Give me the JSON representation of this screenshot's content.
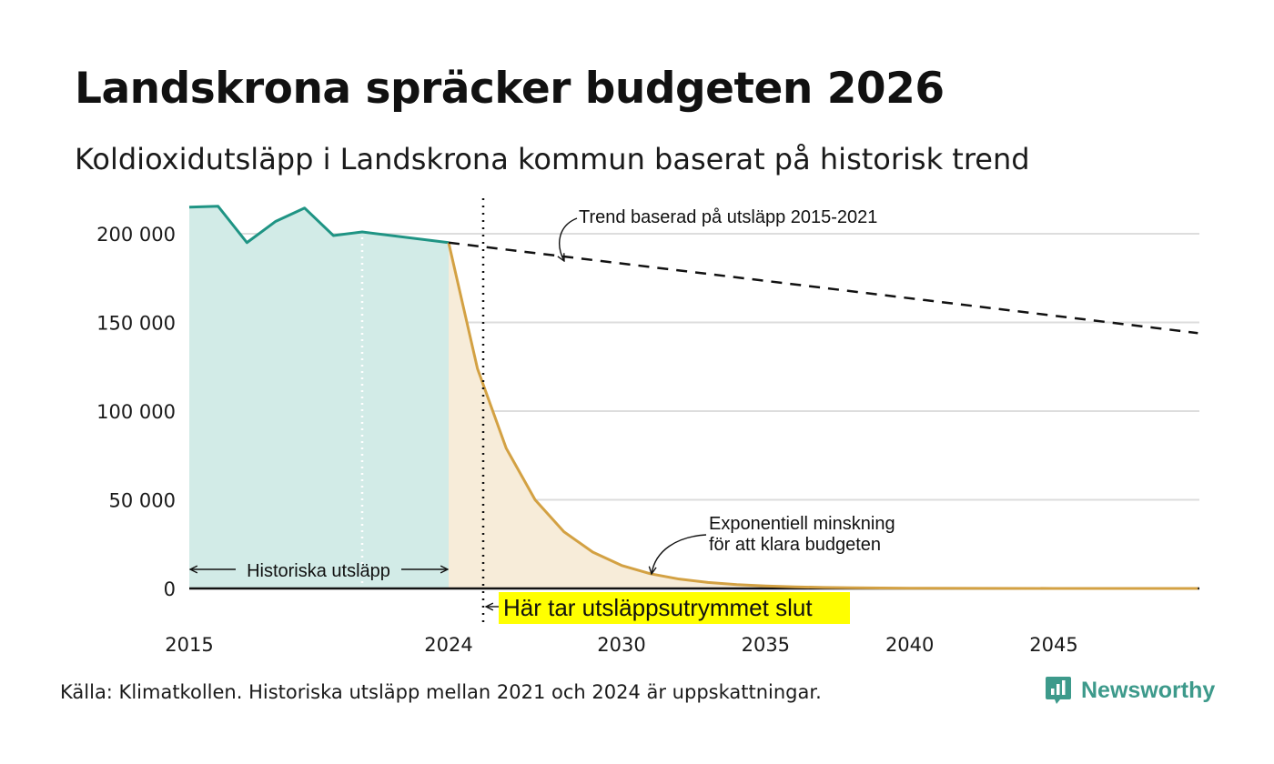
{
  "title": "Landskrona spräcker budgeten 2026",
  "subtitle": "Koldioxidutsläpp i Landskrona kommun baserat på historisk trend",
  "source": "Källa: Klimatkollen. Historiska utsläpp mellan 2021 och 2024 är uppskattningar.",
  "brand": {
    "name": "Newsworthy",
    "icon": "newsworthy-logo-icon",
    "color": "#3d9a8b"
  },
  "chart_data": {
    "type": "area",
    "title": "Landskrona spräcker budgeten 2026",
    "xlabel": "",
    "ylabel": "",
    "xlim": [
      2015,
      2050
    ],
    "ylim": [
      0,
      220000
    ],
    "x_ticks": [
      2015,
      2024,
      2030,
      2035,
      2040,
      2045
    ],
    "x_tick_labels": [
      "2015",
      "2024",
      "2030",
      "2035",
      "2040",
      "2045"
    ],
    "y_ticks": [
      0,
      50000,
      100000,
      150000,
      200000
    ],
    "y_tick_labels": [
      "0",
      "50 000",
      "100 000",
      "150 000",
      "200 000"
    ],
    "grid": true,
    "colors": {
      "historical_line": "#1f9484",
      "historical_fill": "#d2ebe7",
      "budget_line": "#d3a143",
      "budget_fill": "#f7ecd9",
      "trend": "#111111",
      "highlight": "#ffff00",
      "grid": "#dddddd"
    },
    "series": [
      {
        "name": "Historiska utsläpp",
        "style": "line-area",
        "x": [
          2015,
          2016,
          2017,
          2018,
          2019,
          2020,
          2021,
          2024
        ],
        "y": [
          215000,
          215500,
          195000,
          207000,
          214500,
          199000,
          201000,
          195000
        ]
      },
      {
        "name": "Exponentiell minskning för att klara budgeten",
        "style": "line-area",
        "x": [
          2024,
          2025,
          2026,
          2027,
          2028,
          2029,
          2030,
          2031,
          2032,
          2033,
          2034,
          2035,
          2036,
          2037,
          2038,
          2040,
          2045,
          2050
        ],
        "y": [
          195000,
          124000,
          79000,
          50000,
          32000,
          20500,
          13000,
          8300,
          5300,
          3400,
          2200,
          1400,
          900,
          580,
          370,
          150,
          20,
          0
        ]
      },
      {
        "name": "Trend baserad på utsläpp 2015-2021",
        "style": "dashed",
        "x": [
          2024,
          2050
        ],
        "y": [
          195000,
          144000
        ]
      }
    ],
    "markers": [
      {
        "name": "budget-end",
        "type": "vertical-dotted",
        "x": 2025.2
      },
      {
        "name": "estimate-boundary",
        "type": "vertical-dotted-white",
        "x": 2021
      }
    ],
    "annotations": {
      "trend_label": "Trend baserad på utsläpp 2015-2021",
      "exp_label_line1": "Exponentiell minskning",
      "exp_label_line2": "för att klara budgeten",
      "historical_label": "Historiska utsläpp",
      "budget_end_label": "Här tar utsläppsutrymmet slut"
    }
  }
}
